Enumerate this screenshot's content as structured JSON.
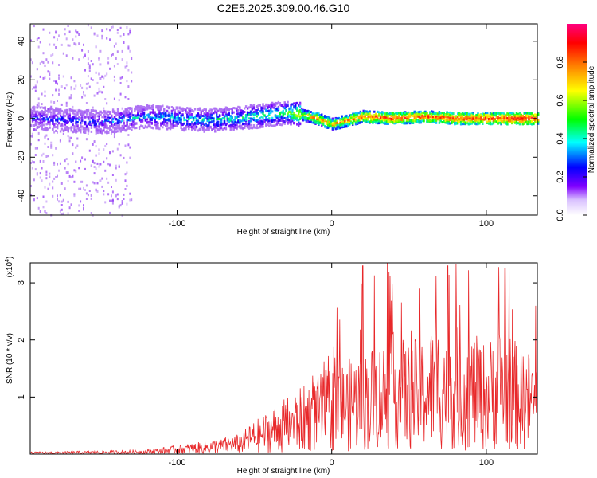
{
  "title": "C2E5.2025.309.00.46.G10",
  "chart_data": [
    {
      "type": "heatmap",
      "xlabel": "Height of straight line (km)",
      "ylabel": "Frequency (Hz)",
      "xlim": [
        -195,
        133
      ],
      "ylim": [
        -50,
        49
      ],
      "xticks": [
        -100,
        0,
        100
      ],
      "yticks": [
        -40,
        -20,
        0,
        20,
        40
      ],
      "colorbar": {
        "label": "Normalized spectral amplitude",
        "range": [
          0.0,
          1.0
        ],
        "ticks": [
          "0.0",
          "0.2",
          "0.4",
          "0.6",
          "0.8"
        ],
        "colors": [
          "#ffffff",
          "#8000ff",
          "#0000ff",
          "#00ffff",
          "#00ff00",
          "#ffff00",
          "#ff8000",
          "#ff0040"
        ]
      },
      "trace": {
        "description_points_x_km": [
          -190,
          -150,
          -120,
          -80,
          -50,
          -30,
          -20,
          -10,
          0,
          10,
          20,
          40,
          60,
          80,
          100,
          120,
          133
        ],
        "frequency_hz": [
          0,
          -2,
          1,
          -1,
          1,
          3,
          2,
          0,
          -3,
          -1,
          1,
          0,
          1,
          0,
          0,
          0,
          0
        ],
        "amplitude": [
          0.3,
          0.35,
          0.4,
          0.45,
          0.5,
          0.55,
          0.7,
          0.8,
          0.75,
          0.8,
          0.85,
          0.9,
          0.85,
          0.9,
          0.9,
          0.95,
          0.9
        ]
      },
      "scatter_region_x_km": [
        -195,
        -130
      ]
    },
    {
      "type": "line",
      "xlabel": "Height of straight line (km)",
      "ylabel": "SNR (10 * v/v)",
      "scale_label": "(x10",
      "scale_exponent": "4",
      "scale_suffix": ")",
      "xlim": [
        -195,
        133
      ],
      "ylim": [
        0,
        3.35
      ],
      "xticks": [
        -100,
        0,
        100
      ],
      "yticks": [
        1,
        2,
        3
      ],
      "color": "#e8282a",
      "envelope_x": [
        -195,
        -150,
        -120,
        -100,
        -80,
        -60,
        -50,
        -40,
        -30,
        -20,
        -10,
        0,
        10,
        20,
        30,
        40,
        50,
        60,
        70,
        80,
        90,
        100,
        110,
        120,
        133
      ],
      "envelope_mean": [
        0.02,
        0.03,
        0.04,
        0.08,
        0.12,
        0.18,
        0.3,
        0.4,
        0.5,
        0.6,
        0.7,
        0.8,
        0.85,
        0.95,
        1.0,
        1.1,
        1.0,
        1.1,
        1.2,
        1.15,
        1.1,
        1.0,
        1.2,
        1.0,
        0.9
      ],
      "peaks": [
        {
          "x": 20,
          "y": 3.3
        },
        {
          "x": 36,
          "y": 3.35
        },
        {
          "x": 75,
          "y": 3.3
        },
        {
          "x": 112,
          "y": 3.25
        },
        {
          "x": 57,
          "y": 2.9
        }
      ]
    }
  ]
}
